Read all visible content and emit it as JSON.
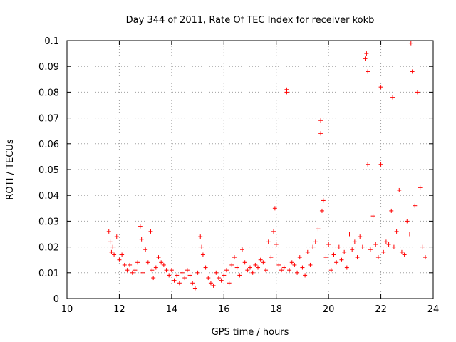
{
  "chart_data": {
    "type": "scatter",
    "title": "Day 344 of 2011, Rate Of TEC Index for receiver kokb",
    "xlabel": "GPS time / hours",
    "ylabel": "ROTI / TECUs",
    "xlim": [
      10,
      24
    ],
    "ylim": [
      0,
      0.1
    ],
    "xticks": [
      "10",
      "12",
      "14",
      "16",
      "18",
      "20",
      "22",
      "24"
    ],
    "yticks": [
      "0",
      "0.01",
      "0.02",
      "0.03",
      "0.04",
      "0.05",
      "0.06",
      "0.07",
      "0.08",
      "0.09",
      "0.1"
    ],
    "grid": true,
    "marker": "+",
    "color": "#ff0000",
    "series": [
      {
        "name": "ROTI",
        "x": [
          11.6,
          11.65,
          11.7,
          11.75,
          11.8,
          11.9,
          12.0,
          12.1,
          12.2,
          12.3,
          12.4,
          12.5,
          12.6,
          12.7,
          12.8,
          12.85,
          12.9,
          13.0,
          13.1,
          13.2,
          13.25,
          13.3,
          13.4,
          13.5,
          13.6,
          13.7,
          13.8,
          13.9,
          14.0,
          14.1,
          14.2,
          14.3,
          14.4,
          14.5,
          14.6,
          14.7,
          14.8,
          14.9,
          15.0,
          15.1,
          15.15,
          15.2,
          15.3,
          15.4,
          15.5,
          15.6,
          15.7,
          15.8,
          15.9,
          16.0,
          16.1,
          16.2,
          16.3,
          16.4,
          16.5,
          16.6,
          16.7,
          16.8,
          16.9,
          17.0,
          17.1,
          17.2,
          17.3,
          17.4,
          17.5,
          17.6,
          17.7,
          17.8,
          17.9,
          17.95,
          18.0,
          18.1,
          18.2,
          18.3,
          18.4,
          18.4,
          18.5,
          18.6,
          18.7,
          18.8,
          18.9,
          19.0,
          19.1,
          19.2,
          19.3,
          19.4,
          19.5,
          19.6,
          19.7,
          19.7,
          19.75,
          19.8,
          19.9,
          20.0,
          20.1,
          20.2,
          20.3,
          20.4,
          20.5,
          20.6,
          20.7,
          20.8,
          20.9,
          21.0,
          21.1,
          21.2,
          21.3,
          21.4,
          21.45,
          21.5,
          21.5,
          21.6,
          21.7,
          21.8,
          21.9,
          22.0,
          22.0,
          22.1,
          22.2,
          22.3,
          22.4,
          22.45,
          22.5,
          22.6,
          22.7,
          22.8,
          22.9,
          23.0,
          23.1,
          23.15,
          23.2,
          23.3,
          23.4,
          23.5,
          23.6,
          23.7
        ],
        "y": [
          0.026,
          0.022,
          0.018,
          0.02,
          0.017,
          0.024,
          0.015,
          0.017,
          0.013,
          0.011,
          0.013,
          0.01,
          0.011,
          0.014,
          0.028,
          0.023,
          0.01,
          0.019,
          0.014,
          0.026,
          0.011,
          0.008,
          0.012,
          0.016,
          0.014,
          0.013,
          0.011,
          0.009,
          0.011,
          0.007,
          0.009,
          0.006,
          0.01,
          0.008,
          0.011,
          0.009,
          0.006,
          0.004,
          0.01,
          0.024,
          0.02,
          0.017,
          0.012,
          0.008,
          0.006,
          0.005,
          0.01,
          0.008,
          0.007,
          0.009,
          0.011,
          0.006,
          0.013,
          0.016,
          0.012,
          0.009,
          0.019,
          0.014,
          0.011,
          0.012,
          0.01,
          0.013,
          0.012,
          0.015,
          0.014,
          0.011,
          0.022,
          0.016,
          0.026,
          0.035,
          0.021,
          0.013,
          0.011,
          0.012,
          0.081,
          0.08,
          0.011,
          0.014,
          0.013,
          0.01,
          0.016,
          0.012,
          0.009,
          0.018,
          0.013,
          0.02,
          0.022,
          0.027,
          0.069,
          0.064,
          0.034,
          0.038,
          0.016,
          0.021,
          0.011,
          0.017,
          0.014,
          0.02,
          0.015,
          0.018,
          0.012,
          0.025,
          0.019,
          0.022,
          0.016,
          0.024,
          0.02,
          0.093,
          0.095,
          0.088,
          0.052,
          0.019,
          0.032,
          0.021,
          0.016,
          0.082,
          0.052,
          0.018,
          0.022,
          0.021,
          0.034,
          0.078,
          0.02,
          0.026,
          0.042,
          0.018,
          0.017,
          0.03,
          0.025,
          0.099,
          0.088,
          0.036,
          0.08,
          0.043,
          0.02,
          0.016
        ]
      }
    ]
  }
}
